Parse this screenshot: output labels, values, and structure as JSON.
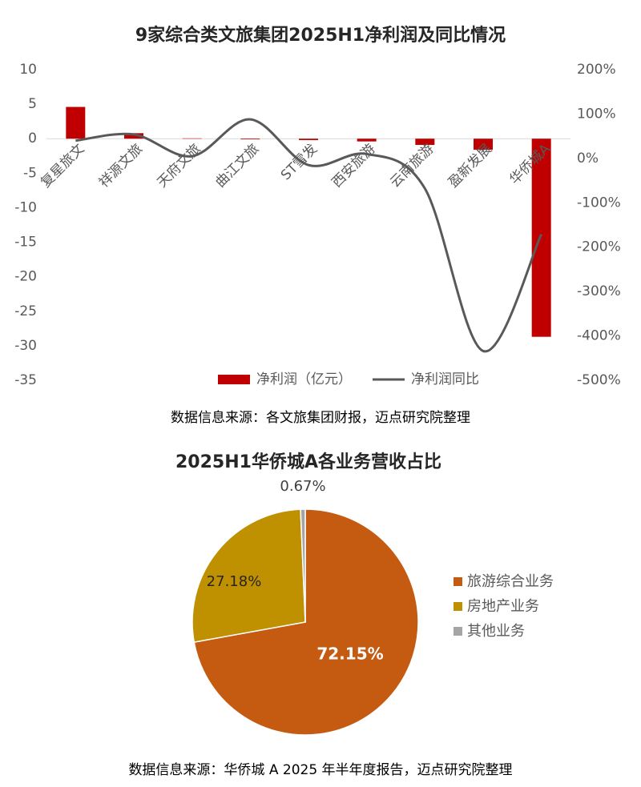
{
  "chart_data": [
    {
      "type": "bar",
      "title": "9家综合类文旅集团2025H1净利润及同比情况",
      "categories": [
        "复星旅文",
        "祥源文旅",
        "天府文旅",
        "曲江文旅",
        "ST雪发",
        "西安旅游",
        "云南旅游",
        "盈新发展",
        "华侨城A"
      ],
      "series": [
        {
          "name": "净利润（亿元）",
          "type": "bar",
          "color": "#c00000",
          "values": [
            4.6,
            0.8,
            0.05,
            -0.1,
            -0.2,
            -0.4,
            -0.9,
            -1.6,
            -28.7
          ]
        },
        {
          "name": "净利润同比",
          "type": "line",
          "axis": "y2",
          "color": "#595959",
          "values": [
            40,
            54,
            5,
            88,
            -15,
            10,
            -68,
            -434,
            -171
          ]
        }
      ],
      "ylim": [
        -35,
        10
      ],
      "yticks": [
        -35,
        -30,
        -25,
        -20,
        -15,
        -10,
        -5,
        0,
        5,
        10
      ],
      "y2lim": [
        -500,
        200
      ],
      "y2ticks": [
        {
          "value": -500,
          "label": "-500%"
        },
        {
          "value": -400,
          "label": "-400%"
        },
        {
          "value": -300,
          "label": "-300%"
        },
        {
          "value": -200,
          "label": "-200%"
        },
        {
          "value": -100,
          "label": "-100%"
        },
        {
          "value": 0,
          "label": "0%"
        },
        {
          "value": 100,
          "label": "100%"
        },
        {
          "value": 200,
          "label": "200%"
        }
      ],
      "legend": "bottom",
      "source": "数据信息来源：各文旅集团财报，迈点研究院整理"
    },
    {
      "type": "pie",
      "title": "2025H1华侨城A各业务营收占比",
      "categories": [
        "旅游综合业务",
        "房地产业务",
        "其他业务"
      ],
      "values": [
        72.15,
        27.18,
        0.67
      ],
      "value_labels": [
        "72.15%",
        "27.18%",
        "0.67%"
      ],
      "colors": [
        "#c55a11",
        "#bf9000",
        "#a5a5a5"
      ],
      "legend": "right",
      "source": "数据信息来源：华侨城 A 2025 年半年度报告，迈点研究院整理"
    }
  ]
}
